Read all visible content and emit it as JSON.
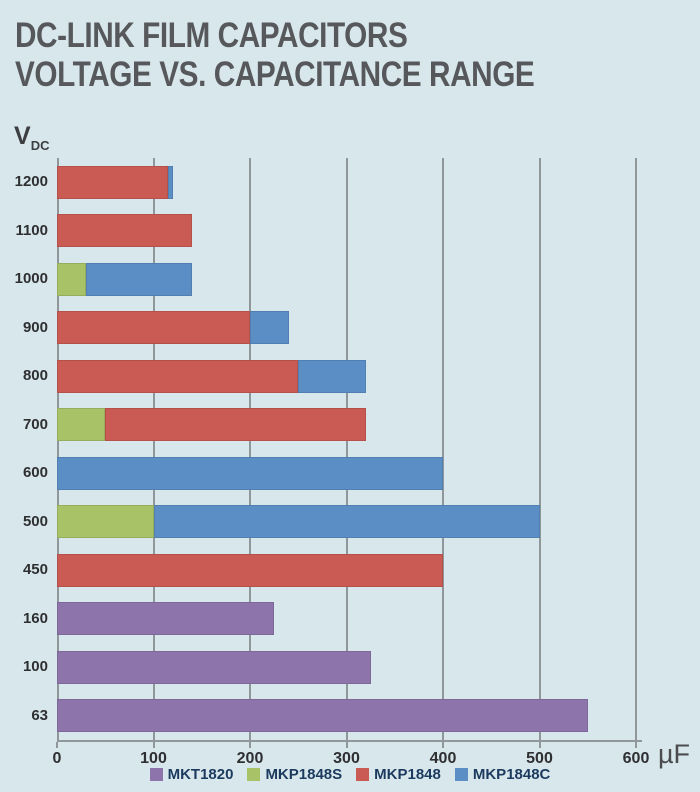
{
  "page": {
    "background": "#d8e7ec",
    "title_line1": "DC-LINK FILM CAPACITORS",
    "title_line2": "VOLTAGE VS. CAPACITANCE RANGE"
  },
  "axes": {
    "y_label_main": "V",
    "y_label_sub": "DC",
    "x_unit": "µF"
  },
  "legend": [
    {
      "name": "MKT1820",
      "color": "#8d74ab"
    },
    {
      "name": "MKP1848S",
      "color": "#a7c267"
    },
    {
      "name": "MKP1848",
      "color": "#ca5a54"
    },
    {
      "name": "MKP1848C",
      "color": "#5c8ec6"
    }
  ],
  "chart_data": {
    "type": "bar",
    "orientation": "horizontal",
    "title": "DC-LINK FILM CAPACITORS VOLTAGE VS. CAPACITANCE RANGE",
    "xlabel": "µF",
    "ylabel": "VDC",
    "xlim": [
      0,
      600
    ],
    "x_ticks": [
      0,
      100,
      200,
      300,
      400,
      500,
      600
    ],
    "grid": "vertical",
    "legend_position": "bottom",
    "categories": [
      "1200",
      "1100",
      "1000",
      "900",
      "800",
      "700",
      "600",
      "500",
      "450",
      "160",
      "100",
      "63"
    ],
    "series_names": [
      "MKT1820",
      "MKP1848S",
      "MKP1848",
      "MKP1848C"
    ],
    "colors": {
      "MKT1820": "#8d74ab",
      "MKP1848S": "#a7c267",
      "MKP1848": "#ca5a54",
      "MKP1848C": "#5c8ec6"
    },
    "rows": [
      {
        "voltage": "1200",
        "segments": [
          {
            "series": "MKP1848",
            "start": 0,
            "end": 115
          },
          {
            "series": "MKP1848C",
            "start": 115,
            "end": 120
          }
        ]
      },
      {
        "voltage": "1100",
        "segments": [
          {
            "series": "MKP1848",
            "start": 0,
            "end": 140
          }
        ]
      },
      {
        "voltage": "1000",
        "segments": [
          {
            "series": "MKP1848S",
            "start": 0,
            "end": 30
          },
          {
            "series": "MKP1848C",
            "start": 30,
            "end": 140
          }
        ]
      },
      {
        "voltage": "900",
        "segments": [
          {
            "series": "MKP1848",
            "start": 0,
            "end": 200
          },
          {
            "series": "MKP1848C",
            "start": 200,
            "end": 240
          }
        ]
      },
      {
        "voltage": "800",
        "segments": [
          {
            "series": "MKP1848",
            "start": 0,
            "end": 250
          },
          {
            "series": "MKP1848C",
            "start": 250,
            "end": 320
          }
        ]
      },
      {
        "voltage": "700",
        "segments": [
          {
            "series": "MKP1848S",
            "start": 0,
            "end": 50
          },
          {
            "series": "MKP1848",
            "start": 50,
            "end": 320
          }
        ]
      },
      {
        "voltage": "600",
        "segments": [
          {
            "series": "MKP1848C",
            "start": 0,
            "end": 400
          }
        ]
      },
      {
        "voltage": "500",
        "segments": [
          {
            "series": "MKP1848S",
            "start": 0,
            "end": 100
          },
          {
            "series": "MKP1848C",
            "start": 100,
            "end": 500
          }
        ]
      },
      {
        "voltage": "450",
        "segments": [
          {
            "series": "MKP1848",
            "start": 0,
            "end": 400
          }
        ]
      },
      {
        "voltage": "160",
        "segments": [
          {
            "series": "MKT1820",
            "start": 0,
            "end": 225
          }
        ]
      },
      {
        "voltage": "100",
        "segments": [
          {
            "series": "MKT1820",
            "start": 0,
            "end": 325
          }
        ]
      },
      {
        "voltage": "63",
        "segments": [
          {
            "series": "MKT1820",
            "start": 0,
            "end": 550
          }
        ]
      }
    ]
  }
}
